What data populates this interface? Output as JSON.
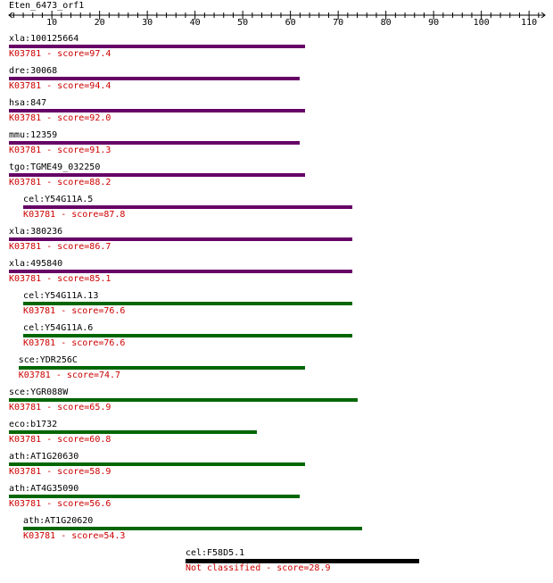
{
  "query": {
    "name": "Eten_6473_orf1"
  },
  "ruler": {
    "ticks": [
      "10",
      "20",
      "30",
      "40",
      "50",
      "60",
      "70",
      "80",
      "90",
      "100",
      "110"
    ],
    "axis_color": "#000000"
  },
  "colors": {
    "purple": "#660066",
    "green": "#006600",
    "black": "#000000",
    "score_text": "#cc0000"
  },
  "hits": [
    {
      "name": "xla:100125664",
      "score": "K03781 - score=97.4",
      "start": 1,
      "end": 62,
      "color": "#660066"
    },
    {
      "name": "dre:30068",
      "score": "K03781 - score=94.4",
      "start": 1,
      "end": 61,
      "color": "#660066"
    },
    {
      "name": "hsa:847",
      "score": "K03781 - score=92.0",
      "start": 1,
      "end": 62,
      "color": "#660066"
    },
    {
      "name": "mmu:12359",
      "score": "K03781 - score=91.3",
      "start": 1,
      "end": 61,
      "color": "#660066"
    },
    {
      "name": "tgo:TGME49_032250",
      "score": "K03781 - score=88.2",
      "start": 1,
      "end": 62,
      "color": "#660066"
    },
    {
      "name": "cel:Y54G11A.5",
      "score": "K03781 - score=87.8",
      "start": 4,
      "end": 72,
      "color": "#660066"
    },
    {
      "name": "xla:380236",
      "score": "K03781 - score=86.7",
      "start": 1,
      "end": 72,
      "color": "#660066"
    },
    {
      "name": "xla:495840",
      "score": "K03781 - score=85.1",
      "start": 1,
      "end": 72,
      "color": "#660066"
    },
    {
      "name": "cel:Y54G11A.13",
      "score": "K03781 - score=76.6",
      "start": 4,
      "end": 72,
      "color": "#006600"
    },
    {
      "name": "cel:Y54G11A.6",
      "score": "K03781 - score=76.6",
      "start": 4,
      "end": 72,
      "color": "#006600"
    },
    {
      "name": "sce:YDR256C",
      "score": "K03781 - score=74.7",
      "start": 3,
      "end": 62,
      "color": "#006600"
    },
    {
      "name": "sce:YGR088W",
      "score": "K03781 - score=65.9",
      "start": 1,
      "end": 73,
      "color": "#006600"
    },
    {
      "name": "eco:b1732",
      "score": "K03781 - score=60.8",
      "start": 1,
      "end": 52,
      "color": "#006600"
    },
    {
      "name": "ath:AT1G20630",
      "score": "K03781 - score=58.9",
      "start": 1,
      "end": 62,
      "color": "#006600"
    },
    {
      "name": "ath:AT4G35090",
      "score": "K03781 - score=56.6",
      "start": 1,
      "end": 61,
      "color": "#006600"
    },
    {
      "name": "ath:AT1G20620",
      "score": "K03781 - score=54.3",
      "start": 4,
      "end": 74,
      "color": "#006600"
    },
    {
      "name": "cel:F58D5.1",
      "score": "Not classified - score=28.9",
      "start": 38,
      "end": 86,
      "color": "#000000"
    }
  ]
}
